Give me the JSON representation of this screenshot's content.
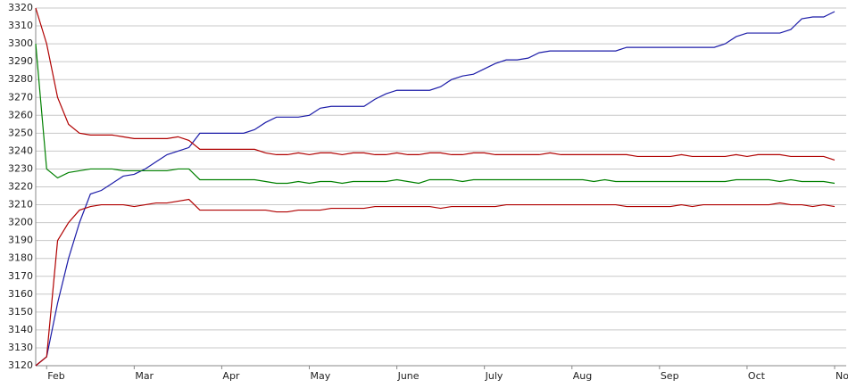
{
  "chart_data": {
    "type": "line",
    "categories": [
      null,
      "Feb",
      null,
      null,
      null,
      null,
      null,
      null,
      null,
      "Mar",
      null,
      null,
      null,
      null,
      null,
      null,
      null,
      "Apr",
      null,
      null,
      null,
      null,
      null,
      null,
      null,
      "May",
      null,
      null,
      null,
      null,
      null,
      null,
      null,
      "June",
      null,
      null,
      null,
      null,
      null,
      null,
      null,
      "July",
      null,
      null,
      null,
      null,
      null,
      null,
      null,
      "Aug",
      null,
      null,
      null,
      null,
      null,
      null,
      null,
      "Sep",
      null,
      null,
      null,
      null,
      null,
      null,
      null,
      "Oct",
      null,
      null,
      null,
      null,
      null,
      null,
      null,
      "No"
    ],
    "series": [
      {
        "color": "#1c1ca8",
        "values": [
          3120,
          3125,
          3155,
          3180,
          3200,
          3216,
          3218,
          3222,
          3226,
          3227,
          3230,
          3234,
          3238,
          3240,
          3242,
          3250,
          3250,
          3250,
          3250,
          3250,
          3252,
          3256,
          3259,
          3259,
          3259,
          3260,
          3264,
          3265,
          3265,
          3265,
          3265,
          3269,
          3272,
          3274,
          3274,
          3274,
          3274,
          3276,
          3280,
          3282,
          3283,
          3286,
          3289,
          3291,
          3291,
          3292,
          3295,
          3296,
          3296,
          3296,
          3296,
          3296,
          3296,
          3296,
          3298,
          3298,
          3298,
          3298,
          3298,
          3298,
          3298,
          3298,
          3298,
          3300,
          3304,
          3306,
          3306,
          3306,
          3306,
          3308,
          3314,
          3315,
          3315,
          3318
        ]
      },
      {
        "color": "#b00000",
        "values": [
          3320,
          3300,
          3270,
          3255,
          3250,
          3249,
          3249,
          3249,
          3248,
          3247,
          3247,
          3247,
          3247,
          3248,
          3246,
          3241,
          3241,
          3241,
          3241,
          3241,
          3241,
          3239,
          3238,
          3238,
          3239,
          3238,
          3239,
          3239,
          3238,
          3239,
          3239,
          3238,
          3238,
          3239,
          3238,
          3238,
          3239,
          3239,
          3238,
          3238,
          3239,
          3239,
          3238,
          3238,
          3238,
          3238,
          3238,
          3239,
          3238,
          3238,
          3238,
          3238,
          3238,
          3238,
          3238,
          3237,
          3237,
          3237,
          3237,
          3238,
          3237,
          3237,
          3237,
          3237,
          3238,
          3237,
          3238,
          3238,
          3238,
          3237,
          3237,
          3237,
          3237,
          3235
        ]
      },
      {
        "color": "#008000",
        "values": [
          3300,
          3230,
          3225,
          3228,
          3229,
          3230,
          3230,
          3230,
          3229,
          3229,
          3229,
          3229,
          3229,
          3230,
          3230,
          3224,
          3224,
          3224,
          3224,
          3224,
          3224,
          3223,
          3222,
          3222,
          3223,
          3222,
          3223,
          3223,
          3222,
          3223,
          3223,
          3223,
          3223,
          3224,
          3223,
          3222,
          3224,
          3224,
          3224,
          3223,
          3224,
          3224,
          3224,
          3224,
          3224,
          3224,
          3224,
          3224,
          3224,
          3224,
          3224,
          3223,
          3224,
          3223,
          3223,
          3223,
          3223,
          3223,
          3223,
          3223,
          3223,
          3223,
          3223,
          3223,
          3224,
          3224,
          3224,
          3224,
          3223,
          3224,
          3223,
          3223,
          3223,
          3222
        ]
      },
      {
        "color": "#b00000",
        "values": [
          3120,
          3125,
          3190,
          3200,
          3207,
          3209,
          3210,
          3210,
          3210,
          3209,
          3210,
          3211,
          3211,
          3212,
          3213,
          3207,
          3207,
          3207,
          3207,
          3207,
          3207,
          3207,
          3206,
          3206,
          3207,
          3207,
          3207,
          3208,
          3208,
          3208,
          3208,
          3209,
          3209,
          3209,
          3209,
          3209,
          3209,
          3208,
          3209,
          3209,
          3209,
          3209,
          3209,
          3210,
          3210,
          3210,
          3210,
          3210,
          3210,
          3210,
          3210,
          3210,
          3210,
          3210,
          3209,
          3209,
          3209,
          3209,
          3209,
          3210,
          3209,
          3210,
          3210,
          3210,
          3210,
          3210,
          3210,
          3210,
          3211,
          3210,
          3210,
          3209,
          3210,
          3209
        ]
      }
    ],
    "ylim": [
      3120,
      3320
    ],
    "yticks": [
      3120,
      3130,
      3140,
      3150,
      3160,
      3170,
      3180,
      3190,
      3200,
      3210,
      3220,
      3230,
      3240,
      3250,
      3260,
      3270,
      3280,
      3290,
      3300,
      3310,
      3320
    ],
    "grid": true
  }
}
